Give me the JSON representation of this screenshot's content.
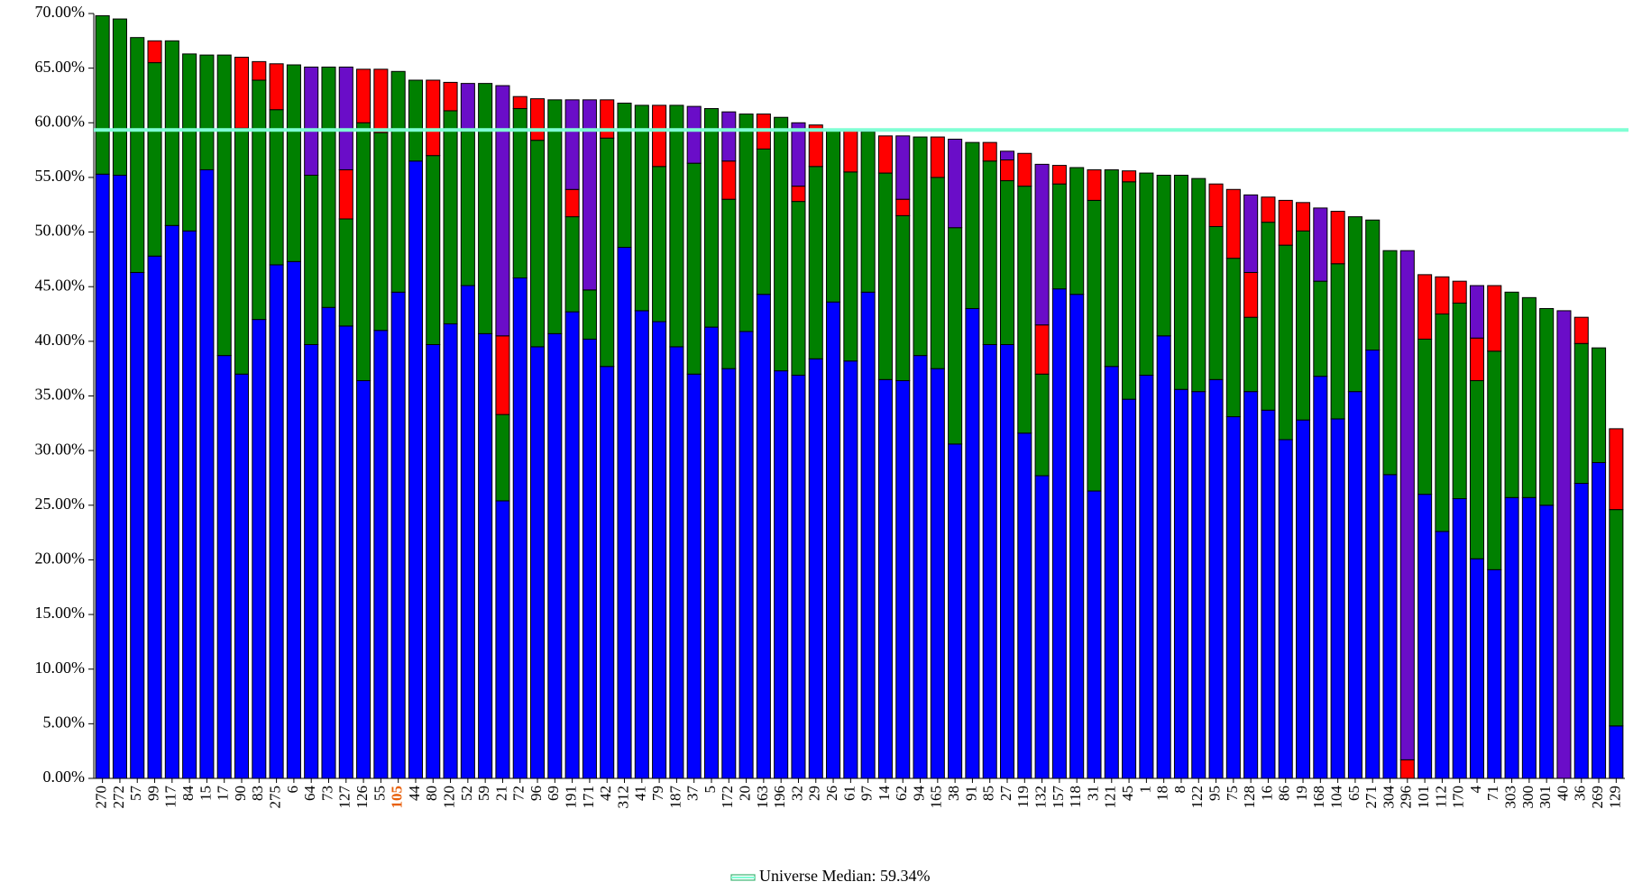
{
  "chart_data": {
    "type": "stacked_bar",
    "categories": [
      "270",
      "272",
      "57",
      "99",
      "117",
      "84",
      "15",
      "17",
      "90",
      "83",
      "275",
      "6",
      "64",
      "73",
      "127",
      "126",
      "55",
      "105",
      "44",
      "80",
      "120",
      "52",
      "59",
      "21",
      "72",
      "96",
      "69",
      "191",
      "171",
      "42",
      "312",
      "41",
      "79",
      "187",
      "37",
      "5",
      "172",
      "20",
      "163",
      "196",
      "32",
      "29",
      "26",
      "61",
      "97",
      "14",
      "62",
      "94",
      "165",
      "38",
      "91",
      "85",
      "27",
      "119",
      "132",
      "157",
      "118",
      "31",
      "121",
      "45",
      "1",
      "18",
      "8",
      "122",
      "95",
      "75",
      "128",
      "16",
      "86",
      "19",
      "168",
      "104",
      "65",
      "271",
      "304",
      "296",
      "101",
      "112",
      "170",
      "4",
      "71",
      "303",
      "300",
      "301",
      "40",
      "36",
      "269",
      "129"
    ],
    "series": [
      {
        "color": "#0000ff",
        "values": [
          55.3,
          55.2,
          46.3,
          47.8,
          50.6,
          50.1,
          55.7,
          38.7,
          37.0,
          42.0,
          47.0,
          47.3,
          39.7,
          43.1,
          41.4,
          36.4,
          41.0,
          44.5,
          56.5,
          39.7,
          41.6,
          45.1,
          40.7,
          25.4,
          45.8,
          39.5,
          40.7,
          42.7,
          40.2,
          37.7,
          48.6,
          42.8,
          41.8,
          39.5,
          37.0,
          41.3,
          37.5,
          40.9,
          44.3,
          37.3,
          36.9,
          38.4,
          43.6,
          38.2,
          44.5,
          36.5,
          36.4,
          38.7,
          37.5,
          30.6,
          43.0,
          39.7,
          39.7,
          31.6,
          27.7,
          44.8,
          44.3,
          26.3,
          37.7,
          34.7,
          36.9,
          40.5,
          35.6,
          35.4,
          36.5,
          33.1,
          35.4,
          33.7,
          31.0,
          32.8,
          36.8,
          32.9,
          35.4,
          39.2,
          27.8,
          null,
          26.0,
          22.6,
          25.6,
          20.1,
          19.1,
          25.7,
          25.7,
          25.0,
          null,
          27.0,
          28.9,
          4.8
        ]
      },
      {
        "color": "#008000",
        "values": [
          14.5,
          14.3,
          21.5,
          17.7,
          16.9,
          16.2,
          10.5,
          27.5,
          22.5,
          21.9,
          14.2,
          18.0,
          15.5,
          22.0,
          9.8,
          23.6,
          18.1,
          20.2,
          7.4,
          17.3,
          19.5,
          14.1,
          22.9,
          7.9,
          15.5,
          18.9,
          21.4,
          8.7,
          4.5,
          20.9,
          13.2,
          18.8,
          14.2,
          22.1,
          19.3,
          20.0,
          15.5,
          19.9,
          13.3,
          23.2,
          15.9,
          17.6,
          15.8,
          17.3,
          14.7,
          18.9,
          15.1,
          20.0,
          17.5,
          19.8,
          15.2,
          16.8,
          15.0,
          22.6,
          9.3,
          9.6,
          11.6,
          26.6,
          18.0,
          19.9,
          18.5,
          14.7,
          19.6,
          19.5,
          14.0,
          14.5,
          6.8,
          17.2,
          17.8,
          17.3,
          8.7,
          14.2,
          16.0,
          11.9,
          20.5,
          null,
          14.2,
          19.9,
          17.9,
          16.3,
          20.0,
          18.8,
          18.3,
          18.0,
          null,
          12.8,
          10.5,
          19.8
        ]
      },
      {
        "color": "#ff0000",
        "values": [
          null,
          null,
          null,
          2.0,
          null,
          null,
          null,
          null,
          6.5,
          1.7,
          4.2,
          null,
          null,
          null,
          4.5,
          4.9,
          5.8,
          null,
          null,
          6.9,
          2.6,
          null,
          null,
          7.2,
          1.1,
          3.8,
          null,
          2.5,
          null,
          3.5,
          null,
          null,
          5.6,
          null,
          null,
          null,
          3.5,
          null,
          3.2,
          null,
          1.4,
          3.8,
          null,
          3.9,
          null,
          3.4,
          1.5,
          null,
          3.7,
          null,
          null,
          1.7,
          1.9,
          3.0,
          4.5,
          1.7,
          null,
          2.8,
          null,
          1.0,
          null,
          null,
          null,
          null,
          3.9,
          6.3,
          4.1,
          2.3,
          4.1,
          2.6,
          null,
          4.8,
          null,
          null,
          null,
          1.7,
          5.9,
          3.4,
          2.0,
          3.9,
          6.0,
          null,
          null,
          null,
          null,
          2.4,
          null,
          7.4
        ]
      },
      {
        "color": "#6a0dc8",
        "values": [
          null,
          null,
          null,
          null,
          null,
          null,
          null,
          null,
          null,
          null,
          null,
          null,
          9.9,
          null,
          9.4,
          null,
          null,
          null,
          null,
          null,
          null,
          4.4,
          null,
          22.9,
          null,
          null,
          null,
          8.2,
          17.4,
          null,
          null,
          null,
          null,
          null,
          5.2,
          null,
          4.5,
          null,
          null,
          null,
          5.8,
          null,
          null,
          null,
          null,
          null,
          5.8,
          null,
          null,
          8.1,
          null,
          null,
          0.8,
          null,
          14.7,
          null,
          null,
          null,
          null,
          null,
          null,
          null,
          null,
          null,
          null,
          null,
          7.1,
          null,
          null,
          null,
          6.7,
          null,
          null,
          null,
          null,
          46.6,
          null,
          null,
          null,
          4.8,
          null,
          null,
          null,
          null,
          42.8,
          null,
          null,
          null
        ]
      }
    ],
    "ylim": [
      0,
      70
    ],
    "yticks": [
      {
        "value": 0,
        "label": "0.00%"
      },
      {
        "value": 5,
        "label": "5.00%"
      },
      {
        "value": 10,
        "label": "10.00%"
      },
      {
        "value": 15,
        "label": "15.00%"
      },
      {
        "value": 20,
        "label": "20.00%"
      },
      {
        "value": 25,
        "label": "25.00%"
      },
      {
        "value": 30,
        "label": "30.00%"
      },
      {
        "value": 35,
        "label": "35.00%"
      },
      {
        "value": 40,
        "label": "40.00%"
      },
      {
        "value": 45,
        "label": "45.00%"
      },
      {
        "value": 50,
        "label": "50.00%"
      },
      {
        "value": 55,
        "label": "55.00%"
      },
      {
        "value": 60,
        "label": "60.00%"
      },
      {
        "value": 65,
        "label": "65.00%"
      },
      {
        "value": 70,
        "label": "70.00%"
      }
    ],
    "median": {
      "value": 59.34,
      "label": "Universe Median: 59.34%",
      "color": "#7fffd4"
    },
    "highlight": {
      "category": "105",
      "color": "#e8600a"
    },
    "legend": "bottom"
  }
}
